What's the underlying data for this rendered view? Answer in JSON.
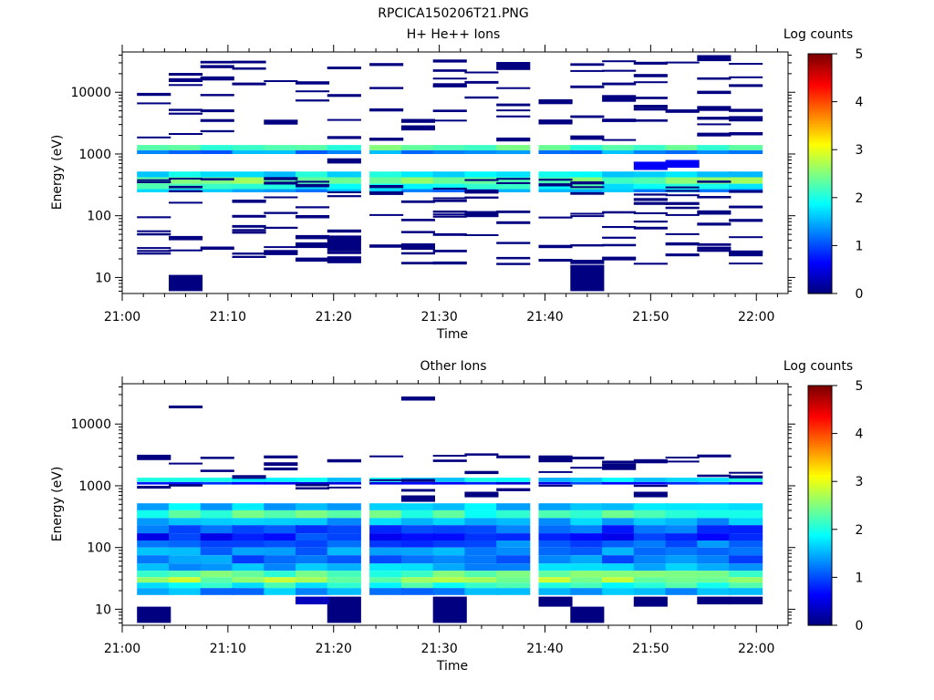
{
  "title": "RPCICA150206T21.PNG",
  "chart_data": [
    {
      "type": "heatmap",
      "title": "H+ He++ Ions",
      "xlabel": "Time",
      "ylabel": "Energy (eV)",
      "x_ticks": [
        "21:00",
        "21:10",
        "21:20",
        "21:30",
        "21:40",
        "21:50",
        "22:00"
      ],
      "x_range": [
        "21:00",
        "22:03"
      ],
      "y_scale": "log",
      "y_ticks": [
        "10",
        "100",
        "1000",
        "10000"
      ],
      "y_range": [
        5.5,
        45000
      ],
      "colorbar": {
        "label": "Log counts",
        "ticks": [
          "0",
          "1",
          "2",
          "3",
          "4",
          "5"
        ],
        "range": [
          0,
          5
        ]
      },
      "time_bins": [
        "21:03",
        "21:06",
        "21:09",
        "21:12",
        "21:15",
        "21:18",
        "21:21",
        "21:25",
        "21:28",
        "21:31",
        "21:34",
        "21:37",
        "21:41",
        "21:44",
        "21:47",
        "21:50",
        "21:53",
        "21:56",
        "21:59"
      ],
      "bands": [
        {
          "energy": [
            1150,
            1400
          ],
          "log_counts": 2.3
        },
        {
          "energy": [
            1000,
            1150
          ],
          "log_counts": 1.3
        },
        {
          "energy": [
            420,
            520
          ],
          "log_counts": 1.8
        },
        {
          "energy": [
            330,
            420
          ],
          "log_counts": 2.4
        },
        {
          "energy": [
            270,
            330
          ],
          "log_counts": 2.0
        },
        {
          "energy": [
            240,
            270
          ],
          "log_counts": 1.4
        }
      ],
      "cells": [
        {
          "t": 1,
          "energy": [
            6,
            11
          ],
          "log_counts": 0.0
        },
        {
          "t": 13,
          "energy": [
            6,
            16
          ],
          "log_counts": 0.0
        },
        {
          "t": 6,
          "energy": [
            17,
            22
          ],
          "log_counts": 0.0
        },
        {
          "t": 5,
          "energy": [
            18,
            21
          ],
          "log_counts": 0.0
        },
        {
          "t": 6,
          "energy": [
            24,
            27
          ],
          "log_counts": 0.0
        },
        {
          "t": 4,
          "energy": [
            23,
            27
          ],
          "log_counts": 0.0
        },
        {
          "t": 5,
          "energy": [
            30,
            37
          ],
          "log_counts": 0.0
        },
        {
          "t": 6,
          "energy": [
            27,
            47
          ],
          "log_counts": 0.0
        },
        {
          "t": 18,
          "energy": [
            22,
            27
          ],
          "log_counts": 0.0
        },
        {
          "t": 8,
          "energy": [
            28,
            32
          ],
          "log_counts": 0.0
        },
        {
          "t": 16,
          "energy": [
            33,
            37
          ],
          "log_counts": 0.0
        },
        {
          "t": 1,
          "energy": [
            40,
            47
          ],
          "log_counts": 0.0
        },
        {
          "t": 9,
          "energy": [
            93,
            100
          ],
          "log_counts": 0.0
        },
        {
          "t": 10,
          "energy": [
            95,
            110
          ],
          "log_counts": 0.0
        },
        {
          "t": 17,
          "energy": [
            112,
            122
          ],
          "log_counts": 0.0
        },
        {
          "t": 11,
          "energy": [
            1600,
            1850
          ],
          "log_counts": 0.0
        },
        {
          "t": 13,
          "energy": [
            1700,
            2000
          ],
          "log_counts": 0.0
        },
        {
          "t": 11,
          "energy": [
            23000,
            31000
          ],
          "log_counts": 0.0
        },
        {
          "t": 17,
          "energy": [
            32000,
            40000
          ],
          "log_counts": 0.0
        },
        {
          "t": 9,
          "energy": [
            12000,
            14000
          ],
          "log_counts": 0.0
        },
        {
          "t": 16,
          "energy": [
            600,
            800
          ],
          "log_counts": 0.6
        },
        {
          "t": 15,
          "energy": [
            550,
            750
          ],
          "log_counts": 0.6
        },
        {
          "t": 6,
          "energy": [
            700,
            850
          ],
          "log_counts": 0.0
        },
        {
          "t": 14,
          "energy": [
            7000,
            9000
          ],
          "log_counts": 0.0
        },
        {
          "t": 17,
          "energy": [
            5000,
            6000
          ],
          "log_counts": 0.0
        },
        {
          "t": 4,
          "energy": [
            3000,
            3600
          ],
          "log_counts": 0.0
        },
        {
          "t": 8,
          "energy": [
            3200,
            3700
          ],
          "log_counts": 0.0
        }
      ]
    },
    {
      "type": "heatmap",
      "title": "Other Ions",
      "xlabel": "Time",
      "ylabel": "Energy (eV)",
      "x_ticks": [
        "21:00",
        "21:10",
        "21:20",
        "21:30",
        "21:40",
        "21:50",
        "22:00"
      ],
      "x_range": [
        "21:00",
        "22:03"
      ],
      "y_scale": "log",
      "y_ticks": [
        "10",
        "100",
        "1000",
        "10000"
      ],
      "y_range": [
        5.5,
        45000
      ],
      "colorbar": {
        "label": "Log counts",
        "ticks": [
          "0",
          "1",
          "2",
          "3",
          "4",
          "5"
        ],
        "range": [
          0,
          5
        ]
      },
      "time_bins": [
        "21:03",
        "21:06",
        "21:09",
        "21:12",
        "21:15",
        "21:18",
        "21:21",
        "21:25",
        "21:28",
        "21:31",
        "21:34",
        "21:37",
        "21:41",
        "21:44",
        "21:47",
        "21:50",
        "21:53",
        "21:56",
        "21:59"
      ],
      "bands": [
        {
          "energy": [
            1150,
            1350
          ],
          "log_counts": 1.8
        },
        {
          "energy": [
            1050,
            1150
          ],
          "log_counts": 0.7
        },
        {
          "energy": [
            400,
            520
          ],
          "log_counts": 1.6
        },
        {
          "energy": [
            300,
            400
          ],
          "log_counts": 2.2
        },
        {
          "energy": [
            230,
            300
          ],
          "log_counts": 1.5
        },
        {
          "energy": [
            170,
            230
          ],
          "log_counts": 1.0
        },
        {
          "energy": [
            130,
            170
          ],
          "log_counts": 0.8
        },
        {
          "energy": [
            100,
            130
          ],
          "log_counts": 1.1
        },
        {
          "energy": [
            75,
            100
          ],
          "log_counts": 1.3
        },
        {
          "energy": [
            55,
            75
          ],
          "log_counts": 1.2
        },
        {
          "energy": [
            42,
            55
          ],
          "log_counts": 1.5
        },
        {
          "energy": [
            33,
            42
          ],
          "log_counts": 2.3
        },
        {
          "energy": [
            27,
            33
          ],
          "log_counts": 2.6
        },
        {
          "energy": [
            22,
            27
          ],
          "log_counts": 2.0
        },
        {
          "energy": [
            17,
            22
          ],
          "log_counts": 1.4
        }
      ],
      "cells": [
        {
          "t": 0,
          "energy": [
            6,
            11
          ],
          "log_counts": 0.0
        },
        {
          "t": 13,
          "energy": [
            6,
            11
          ],
          "log_counts": 0.0
        },
        {
          "t": 6,
          "energy": [
            6,
            16
          ],
          "log_counts": 0.0
        },
        {
          "t": 9,
          "energy": [
            6,
            16
          ],
          "log_counts": 0.0
        },
        {
          "t": 5,
          "energy": [
            12,
            16
          ],
          "log_counts": 0.3
        },
        {
          "t": 12,
          "energy": [
            11,
            16
          ],
          "log_counts": 0.0
        },
        {
          "t": 15,
          "energy": [
            11,
            16
          ],
          "log_counts": 0.0
        },
        {
          "t": 17,
          "energy": [
            12,
            16
          ],
          "log_counts": 0.0
        },
        {
          "t": 18,
          "energy": [
            12,
            16
          ],
          "log_counts": 0.0
        },
        {
          "t": 1,
          "energy": [
            18000,
            20000
          ],
          "log_counts": 0.0
        },
        {
          "t": 8,
          "energy": [
            24000,
            28000
          ],
          "log_counts": 0.0
        },
        {
          "t": 0,
          "energy": [
            2600,
            2900
          ],
          "log_counts": 0.0
        },
        {
          "t": 4,
          "energy": [
            2100,
            2400
          ],
          "log_counts": 0.0
        },
        {
          "t": 6,
          "energy": [
            2400,
            2700
          ],
          "log_counts": 0.0
        },
        {
          "t": 12,
          "energy": [
            2400,
            3100
          ],
          "log_counts": 0.0
        },
        {
          "t": 14,
          "energy": [
            1800,
            2200
          ],
          "log_counts": 0.0
        },
        {
          "t": 15,
          "energy": [
            2400,
            2700
          ],
          "log_counts": 0.0
        },
        {
          "t": 8,
          "energy": [
            550,
            700
          ],
          "log_counts": 0.0
        },
        {
          "t": 10,
          "energy": [
            650,
            800
          ],
          "log_counts": 0.0
        },
        {
          "t": 15,
          "energy": [
            650,
            800
          ],
          "log_counts": 0.0
        }
      ]
    }
  ]
}
